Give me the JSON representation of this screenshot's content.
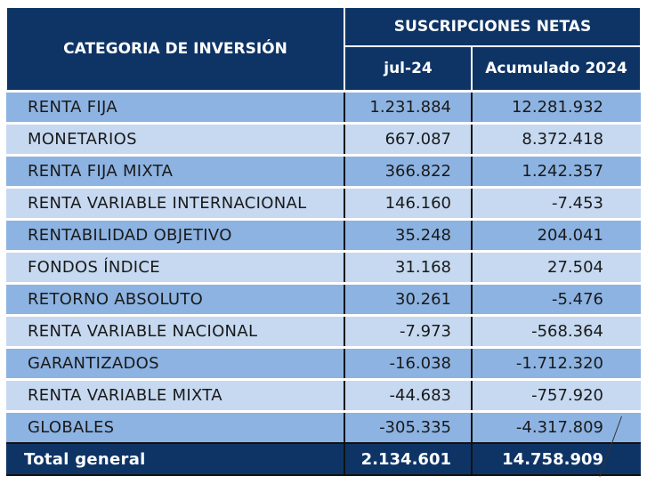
{
  "header": {
    "category": "CATEGORIA DE INVERSIÓN",
    "group": "SUSCRIPCIONES NETAS",
    "col1": "jul-24",
    "col2": "Acumulado 2024"
  },
  "rows": [
    {
      "name": "RENTA FIJA",
      "jul": "1.231.884",
      "acum": "12.281.932"
    },
    {
      "name": "MONETARIOS",
      "jul": "667.087",
      "acum": "8.372.418"
    },
    {
      "name": "RENTA FIJA MIXTA",
      "jul": "366.822",
      "acum": "1.242.357"
    },
    {
      "name": "RENTA VARIABLE INTERNACIONAL",
      "jul": "146.160",
      "acum": "-7.453"
    },
    {
      "name": "RENTABILIDAD OBJETIVO",
      "jul": "35.248",
      "acum": "204.041"
    },
    {
      "name": "FONDOS ÍNDICE",
      "jul": "31.168",
      "acum": "27.504"
    },
    {
      "name": "RETORNO ABSOLUTO",
      "jul": "30.261",
      "acum": "-5.476"
    },
    {
      "name": "RENTA VARIABLE NACIONAL",
      "jul": "-7.973",
      "acum": "-568.364"
    },
    {
      "name": "GARANTIZADOS",
      "jul": "-16.038",
      "acum": "-1.712.320"
    },
    {
      "name": "RENTA VARIABLE MIXTA",
      "jul": "-44.683",
      "acum": "-757.920"
    },
    {
      "name": "GLOBALES",
      "jul": "-305.335",
      "acum": "-4.317.809"
    }
  ],
  "total": {
    "name": "Total general",
    "jul": "2.134.601",
    "acum": "14.758.909"
  },
  "colors": {
    "header": "#0e3466",
    "row_dark": "#8db3e2",
    "row_light": "#c6d9f1"
  }
}
